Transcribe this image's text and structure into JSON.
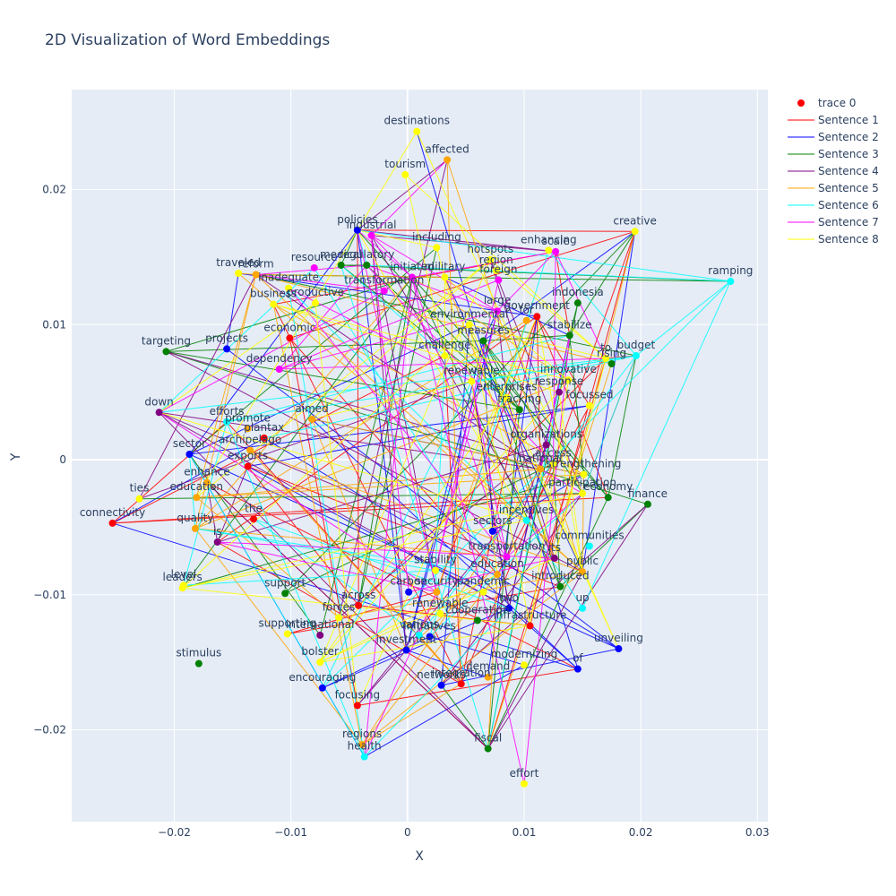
{
  "chart_data": {
    "type": "scatter",
    "title": "2D Visualization of Word Embeddings",
    "xlabel": "X",
    "ylabel": "Y",
    "xlim": [
      -0.0288,
      0.0309
    ],
    "ylim": [
      -0.0268,
      0.0274
    ],
    "x_ticks": [
      -0.02,
      -0.01,
      0,
      0.01,
      0.02,
      0.03
    ],
    "x_tick_labels": [
      "−0.02",
      "−0.01",
      "0",
      "0.01",
      "0.02",
      "0.03"
    ],
    "y_ticks": [
      -0.02,
      -0.01,
      0,
      0.01,
      0.02
    ],
    "y_tick_labels": [
      "−0.02",
      "−0.01",
      "0",
      "0.01",
      "0.02"
    ],
    "grid": true,
    "legend_position": "top-right",
    "legend": [
      {
        "name": "trace 0",
        "kind": "marker",
        "color": "#ff0000"
      },
      {
        "name": "Sentence 1",
        "kind": "line",
        "color": "#ff0000"
      },
      {
        "name": "Sentence 2",
        "kind": "line",
        "color": "#0000ff"
      },
      {
        "name": "Sentence 3",
        "kind": "line",
        "color": "#008000"
      },
      {
        "name": "Sentence 4",
        "kind": "line",
        "color": "#800080"
      },
      {
        "name": "Sentence 5",
        "kind": "line",
        "color": "#ffa500"
      },
      {
        "name": "Sentence 6",
        "kind": "line",
        "color": "#00ffff"
      },
      {
        "name": "Sentence 7",
        "kind": "line",
        "color": "#ff00ff"
      },
      {
        "name": "Sentence 8",
        "kind": "line",
        "color": "#ffff00"
      }
    ],
    "points": [
      {
        "label": "destinations",
        "x": 0.0008,
        "y": 0.0243,
        "color": "#ffff00"
      },
      {
        "label": "affected",
        "x": 0.0034,
        "y": 0.0222,
        "color": "#ffa500"
      },
      {
        "label": "tourism",
        "x": -0.0002,
        "y": 0.0211,
        "color": "#ffff00"
      },
      {
        "label": "policies",
        "x": -0.0043,
        "y": 0.017,
        "color": "#0000ff"
      },
      {
        "label": "industrial",
        "x": -0.0031,
        "y": 0.0166,
        "color": "#ff00ff"
      },
      {
        "label": "including",
        "x": 0.0025,
        "y": 0.0157,
        "color": "#ffff00"
      },
      {
        "label": "creative",
        "x": 0.0195,
        "y": 0.0169,
        "color": "#ffff00"
      },
      {
        "label": "enhancing",
        "x": 0.0121,
        "y": 0.0155,
        "color": "#ffff00"
      },
      {
        "label": "scale",
        "x": 0.0127,
        "y": 0.0154,
        "color": "#ff00ff"
      },
      {
        "label": "hotspots",
        "x": 0.0071,
        "y": 0.0148,
        "color": "#ffff00"
      },
      {
        "label": "region",
        "x": 0.0076,
        "y": 0.014,
        "color": "#ffff00"
      },
      {
        "label": "ramping",
        "x": 0.0277,
        "y": 0.0132,
        "color": "#00ffff"
      },
      {
        "label": "traveled",
        "x": -0.0145,
        "y": 0.0138,
        "color": "#ffff00"
      },
      {
        "label": "reform",
        "x": -0.013,
        "y": 0.0137,
        "color": "#ffa500"
      },
      {
        "label": "resource",
        "x": -0.008,
        "y": 0.0142,
        "color": "#ff00ff"
      },
      {
        "label": "medical",
        "x": -0.0057,
        "y": 0.0144,
        "color": "#008000"
      },
      {
        "label": "regulatory",
        "x": -0.0035,
        "y": 0.0144,
        "color": "#008000"
      },
      {
        "label": "initiated",
        "x": 0.0004,
        "y": 0.0135,
        "color": "#ff00ff"
      },
      {
        "label": "military",
        "x": 0.0032,
        "y": 0.0135,
        "color": "#ffff00"
      },
      {
        "label": "foreign",
        "x": 0.0078,
        "y": 0.0133,
        "color": "#ff00ff"
      },
      {
        "label": "inadequate",
        "x": -0.0102,
        "y": 0.0127,
        "color": "#ffff00"
      },
      {
        "label": "business",
        "x": -0.0115,
        "y": 0.0115,
        "color": "#ffff00"
      },
      {
        "label": "productive",
        "x": -0.0079,
        "y": 0.0116,
        "color": "#ffff00"
      },
      {
        "label": "transformation",
        "x": -0.002,
        "y": 0.0125,
        "color": "#ff00ff"
      },
      {
        "label": "indonesia",
        "x": 0.0146,
        "y": 0.0116,
        "color": "#008000"
      },
      {
        "label": "large",
        "x": 0.0077,
        "y": 0.011,
        "color": "#ff00ff"
      },
      {
        "label": "government",
        "x": 0.0111,
        "y": 0.0106,
        "color": "#ff0000"
      },
      {
        "label": "for",
        "x": 0.0102,
        "y": 0.0103,
        "color": "#ffa500"
      },
      {
        "label": "economic",
        "x": -0.0101,
        "y": 0.009,
        "color": "#ff0000"
      },
      {
        "label": "environmental",
        "x": 0.0053,
        "y": 0.01,
        "color": "#ffff00"
      },
      {
        "label": "measures",
        "x": 0.0065,
        "y": 0.0088,
        "color": "#008000"
      },
      {
        "label": "stabilize",
        "x": 0.0139,
        "y": 0.0092,
        "color": "#008000"
      },
      {
        "label": "to",
        "x": 0.017,
        "y": 0.0075,
        "color": "#ffff00"
      },
      {
        "label": "budget",
        "x": 0.0196,
        "y": 0.0077,
        "color": "#00ffff"
      },
      {
        "label": "rising",
        "x": 0.0175,
        "y": 0.0071,
        "color": "#008000"
      },
      {
        "label": "targeting",
        "x": -0.0207,
        "y": 0.008,
        "color": "#008000"
      },
      {
        "label": "projects",
        "x": -0.0155,
        "y": 0.0082,
        "color": "#0000ff"
      },
      {
        "label": "dependency",
        "x": -0.011,
        "y": 0.0067,
        "color": "#ff00ff"
      },
      {
        "label": "challenge",
        "x": 0.0032,
        "y": 0.0077,
        "color": "#ffff00"
      },
      {
        "label": "renewable",
        "x": 0.0055,
        "y": 0.0058,
        "color": "#ffff00"
      },
      {
        "label": "innovative",
        "x": 0.0138,
        "y": 0.0059,
        "color": "#ffff00"
      },
      {
        "label": "response",
        "x": 0.013,
        "y": 0.005,
        "color": "#800080"
      },
      {
        "label": "focussed",
        "x": 0.0156,
        "y": 0.004,
        "color": "#ffff00"
      },
      {
        "label": "down",
        "x": -0.0213,
        "y": 0.0035,
        "color": "#800080"
      },
      {
        "label": "efforts",
        "x": -0.0155,
        "y": 0.0028,
        "color": "#00ffff"
      },
      {
        "label": "promote",
        "x": -0.0137,
        "y": 0.0023,
        "color": "#ffa500"
      },
      {
        "label": "aimed",
        "x": -0.0082,
        "y": 0.003,
        "color": "#ffa500"
      },
      {
        "label": "tracking",
        "x": 0.0096,
        "y": 0.0037,
        "color": "#008000"
      },
      {
        "label": "enterprises",
        "x": 0.0085,
        "y": 0.0046,
        "color": "#ffff00"
      },
      {
        "label": "plantax",
        "x": -0.0123,
        "y": 0.0016,
        "color": "#ff0000"
      },
      {
        "label": "organizations",
        "x": 0.0119,
        "y": 0.0011,
        "color": "#800080"
      },
      {
        "label": "sector",
        "x": -0.0187,
        "y": 0.0004,
        "color": "#0000ff"
      },
      {
        "label": "archipelago",
        "x": -0.0135,
        "y": 0.0007,
        "color": "#ffa500"
      },
      {
        "label": "access",
        "x": 0.0125,
        "y": -0.0003,
        "color": "#ffff00"
      },
      {
        "label": "exports",
        "x": -0.0137,
        "y": -0.0005,
        "color": "#ff0000"
      },
      {
        "label": "strengthening",
        "x": 0.0151,
        "y": -0.0011,
        "color": "#ffff00"
      },
      {
        "label": "national",
        "x": 0.0114,
        "y": -0.0007,
        "color": "#ffa500"
      },
      {
        "label": "enhance",
        "x": -0.0172,
        "y": -0.0017,
        "color": "#ffa500"
      },
      {
        "label": "ties",
        "x": -0.023,
        "y": -0.0029,
        "color": "#ffff00"
      },
      {
        "label": "education",
        "x": -0.0181,
        "y": -0.0028,
        "color": "#ffa500"
      },
      {
        "label": "participation",
        "x": 0.015,
        "y": -0.0025,
        "color": "#ffff00"
      },
      {
        "label": "economy",
        "x": 0.0172,
        "y": -0.0028,
        "color": "#008000"
      },
      {
        "label": "finance",
        "x": 0.0206,
        "y": -0.0033,
        "color": "#008000"
      },
      {
        "label": "connectivity",
        "x": -0.0253,
        "y": -0.0047,
        "color": "#ff0000"
      },
      {
        "label": "the",
        "x": -0.0132,
        "y": -0.0044,
        "color": "#ff0000"
      },
      {
        "label": "quality",
        "x": -0.0182,
        "y": -0.0051,
        "color": "#ffa500"
      },
      {
        "label": "is",
        "x": -0.0163,
        "y": -0.0061,
        "color": "#800080"
      },
      {
        "label": "sectors",
        "x": 0.0073,
        "y": -0.0053,
        "color": "#0000ff"
      },
      {
        "label": "incentives",
        "x": 0.0102,
        "y": -0.0045,
        "color": "#00ffff"
      },
      {
        "label": "communities",
        "x": 0.0156,
        "y": -0.0064,
        "color": "#00ffff"
      },
      {
        "label": "transportation",
        "x": 0.0085,
        "y": -0.0072,
        "color": "#ff00ff"
      },
      {
        "label": "its",
        "x": 0.0126,
        "y": -0.0073,
        "color": "#800080"
      },
      {
        "label": "stability",
        "x": 0.0024,
        "y": -0.0082,
        "color": "#ffff00"
      },
      {
        "label": "education",
        "x": 0.0077,
        "y": -0.0085,
        "color": "#ffa500"
      },
      {
        "label": "public",
        "x": 0.015,
        "y": -0.0083,
        "color": "#ffa500"
      },
      {
        "label": "level",
        "x": -0.0192,
        "y": -0.0093,
        "color": "#ffff00"
      },
      {
        "label": "leaders",
        "x": -0.0193,
        "y": -0.0095,
        "color": "#ffff00"
      },
      {
        "label": "support",
        "x": -0.0105,
        "y": -0.0099,
        "color": "#008000"
      },
      {
        "label": "carbon",
        "x": 0.0001,
        "y": -0.0098,
        "color": "#0000ff"
      },
      {
        "label": "security",
        "x": 0.0025,
        "y": -0.0098,
        "color": "#ffa500"
      },
      {
        "label": "introduced",
        "x": 0.0131,
        "y": -0.0094,
        "color": "#008000"
      },
      {
        "label": "up",
        "x": 0.015,
        "y": -0.011,
        "color": "#00ffff"
      },
      {
        "label": "across",
        "x": -0.0042,
        "y": -0.0108,
        "color": "#ff0000"
      },
      {
        "label": "pandemic",
        "x": 0.0065,
        "y": -0.0098,
        "color": "#ffff00"
      },
      {
        "label": "two",
        "x": 0.0087,
        "y": -0.011,
        "color": "#0000ff"
      },
      {
        "label": "renewable",
        "x": 0.0028,
        "y": -0.0114,
        "color": "#ffff00"
      },
      {
        "label": "cooperation",
        "x": 0.006,
        "y": -0.0119,
        "color": "#008000"
      },
      {
        "label": "infrastructure",
        "x": 0.0105,
        "y": -0.0123,
        "color": "#ff0000"
      },
      {
        "label": "supporting",
        "x": -0.0103,
        "y": -0.0129,
        "color": "#ffff00"
      },
      {
        "label": "international",
        "x": -0.0075,
        "y": -0.013,
        "color": "#800080"
      },
      {
        "label": "forces",
        "x": -0.0059,
        "y": -0.0117,
        "color": "#ffff00"
      },
      {
        "label": "various",
        "x": 0.001,
        "y": -0.013,
        "color": "#00ffff"
      },
      {
        "label": "initiatives",
        "x": 0.0019,
        "y": -0.0131,
        "color": "#0000ff"
      },
      {
        "label": "investment",
        "x": -0.0001,
        "y": -0.0141,
        "color": "#0000ff"
      },
      {
        "label": "unveiling",
        "x": 0.0181,
        "y": -0.014,
        "color": "#0000ff"
      },
      {
        "label": "bolster",
        "x": -0.0075,
        "y": -0.015,
        "color": "#ffff00"
      },
      {
        "label": "stimulus",
        "x": -0.0179,
        "y": -0.0151,
        "color": "#008000"
      },
      {
        "label": "modernizing",
        "x": 0.01,
        "y": -0.0152,
        "color": "#ffff00"
      },
      {
        "label": "of",
        "x": 0.0146,
        "y": -0.0155,
        "color": "#0000ff"
      },
      {
        "label": "demand",
        "x": 0.0069,
        "y": -0.0161,
        "color": "#ffa500"
      },
      {
        "label": "networks",
        "x": 0.0029,
        "y": -0.0167,
        "color": "#0000ff"
      },
      {
        "label": "integration",
        "x": 0.0046,
        "y": -0.0166,
        "color": "#ff0000"
      },
      {
        "label": "encouraging",
        "x": -0.0073,
        "y": -0.0169,
        "color": "#0000ff"
      },
      {
        "label": "focusing",
        "x": -0.0043,
        "y": -0.0182,
        "color": "#ff0000"
      },
      {
        "label": "regions",
        "x": -0.0039,
        "y": -0.0211,
        "color": "#ffa500"
      },
      {
        "label": "health",
        "x": -0.0037,
        "y": -0.022,
        "color": "#00ffff"
      },
      {
        "label": "fiscal",
        "x": 0.0069,
        "y": -0.0214,
        "color": "#008000"
      },
      {
        "label": "effort",
        "x": 0.01,
        "y": -0.024,
        "color": "#ffff00"
      }
    ]
  }
}
